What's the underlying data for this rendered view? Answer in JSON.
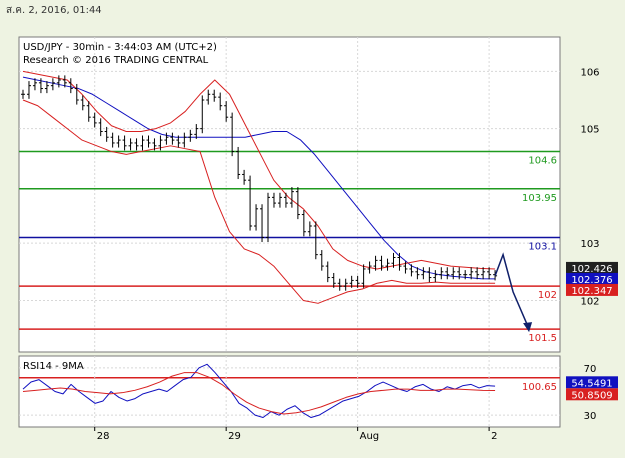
{
  "window": {
    "timestamp": "ส.ค. 2, 2016, 01:44"
  },
  "chart_data": [
    {
      "type": "line",
      "title": "USD/JPY - 30min - 3:44:03 AM (UTC+2)",
      "subtitle": "Research © 2016 TRADING CENTRAL",
      "ylim": [
        101.1,
        106.6
      ],
      "y_ticks": [
        {
          "value": 106,
          "label": "106"
        },
        {
          "value": 105,
          "label": "105"
        },
        {
          "value": 103,
          "label": "103"
        },
        {
          "value": 102,
          "label": "102"
        }
      ],
      "x_ticks": [
        {
          "at": 12,
          "label": "28"
        },
        {
          "at": 34,
          "label": "29"
        },
        {
          "at": 56,
          "label": "Aug"
        },
        {
          "at": 78,
          "label": "2"
        }
      ],
      "levels": [
        {
          "value": 104.6,
          "label": "104.6",
          "color": "#1f9a1f"
        },
        {
          "value": 103.95,
          "label": "103.95",
          "color": "#1f9a1f"
        },
        {
          "value": 103.1,
          "label": "103.1",
          "color": "#1010a0"
        },
        {
          "value": 102.25,
          "label": "102",
          "color": "#d82020"
        },
        {
          "value": 101.5,
          "label": "101.5",
          "color": "#d82020"
        },
        {
          "value": 100.65,
          "label": "100.65",
          "color": "#d82020"
        }
      ],
      "price_labels": [
        {
          "value": 102.426,
          "label": "102.426",
          "bg": "#202020",
          "fg": "#ffffff"
        },
        {
          "value": 102.376,
          "label": "102.376",
          "bg": "#1010c0",
          "fg": "#ffffff"
        },
        {
          "value": 102.347,
          "label": "102.347",
          "bg": "#d82020",
          "fg": "#ffffff"
        }
      ],
      "series": [
        {
          "kind": "close",
          "values": [
            105.6,
            105.75,
            105.8,
            105.7,
            105.75,
            105.8,
            105.85,
            105.8,
            105.7,
            105.5,
            105.4,
            105.2,
            105.1,
            104.95,
            104.85,
            104.75,
            104.8,
            104.7,
            104.75,
            104.7,
            104.8,
            104.75,
            104.7,
            104.8,
            104.85,
            104.8,
            104.75,
            104.85,
            104.9,
            105.0,
            105.5,
            105.6,
            105.55,
            105.4,
            105.2,
            104.6,
            104.2,
            104.1,
            103.3,
            103.6,
            103.1,
            103.8,
            103.7,
            103.8,
            103.7,
            103.9,
            103.5,
            103.2,
            103.3,
            102.8,
            102.6,
            102.4,
            102.3,
            102.25,
            102.3,
            102.35,
            102.3,
            102.55,
            102.6,
            102.7,
            102.6,
            102.65,
            102.75,
            102.6,
            102.55,
            102.5,
            102.45,
            102.5,
            102.4,
            102.45,
            102.5,
            102.45,
            102.5,
            102.45,
            102.45,
            102.5,
            102.45,
            102.5,
            102.45,
            102.43
          ]
        },
        {
          "kind": "moving-average",
          "color": "#1010c0",
          "values": [
            105.9,
            105.85,
            105.8,
            105.75,
            105.7,
            105.6,
            105.45,
            105.3,
            105.15,
            105.0,
            104.9,
            104.85,
            104.85,
            104.85,
            104.85,
            104.85,
            104.85,
            104.9,
            104.95,
            104.95,
            104.8,
            104.55,
            104.25,
            103.95,
            103.65,
            103.35,
            103.05,
            102.8,
            102.6,
            102.5,
            102.45,
            102.42,
            102.4,
            102.38,
            102.376
          ]
        },
        {
          "kind": "bollinger-upper",
          "color": "#d82020",
          "values": [
            106.0,
            105.95,
            105.9,
            105.85,
            105.6,
            105.3,
            105.05,
            104.95,
            104.95,
            105.0,
            105.1,
            105.3,
            105.6,
            105.85,
            105.6,
            105.1,
            104.6,
            104.1,
            103.8,
            103.6,
            103.3,
            102.9,
            102.7,
            102.6,
            102.55,
            102.6,
            102.65,
            102.7,
            102.65,
            102.6,
            102.58,
            102.56,
            102.55
          ]
        },
        {
          "kind": "bollinger-lower",
          "color": "#d82020",
          "values": [
            105.5,
            105.4,
            105.2,
            105.0,
            104.8,
            104.7,
            104.6,
            104.55,
            104.6,
            104.65,
            104.7,
            104.65,
            104.6,
            103.8,
            103.2,
            102.9,
            102.8,
            102.6,
            102.3,
            102.0,
            101.95,
            102.05,
            102.15,
            102.2,
            102.3,
            102.35,
            102.3,
            102.3,
            102.32,
            102.3,
            102.3,
            102.3,
            102.3
          ]
        },
        {
          "kind": "projection",
          "color": "#10206a",
          "values": [
            102.43,
            102.8,
            102.15,
            101.5
          ]
        }
      ]
    },
    {
      "type": "line",
      "title": "RSI14 - 9MA",
      "ylim": [
        20,
        80
      ],
      "y_ticks": [
        {
          "value": 70,
          "label": "70"
        },
        {
          "value": 30,
          "label": "30"
        }
      ],
      "price_labels": [
        {
          "value": 54.5491,
          "label": "54.5491",
          "bg": "#1010c0",
          "fg": "#ffffff"
        },
        {
          "value": 50.8509,
          "label": "50.8509",
          "bg": "#d82020",
          "fg": "#ffffff"
        }
      ],
      "series": [
        {
          "kind": "rsi",
          "color": "#1010c0",
          "values": [
            52,
            58,
            60,
            55,
            50,
            48,
            56,
            50,
            45,
            40,
            42,
            50,
            45,
            42,
            44,
            48,
            50,
            52,
            50,
            55,
            60,
            62,
            70,
            73,
            66,
            58,
            50,
            40,
            36,
            30,
            28,
            33,
            30,
            35,
            38,
            32,
            28,
            30,
            34,
            38,
            42,
            44,
            46,
            50,
            55,
            58,
            55,
            52,
            50,
            54,
            56,
            52,
            50,
            54,
            52,
            55,
            56,
            53,
            55,
            54.55
          ]
        },
        {
          "kind": "ma",
          "color": "#d82020",
          "values": [
            50,
            51,
            52,
            53,
            52,
            50,
            49,
            48,
            49,
            51,
            54,
            58,
            63,
            66,
            66,
            62,
            56,
            48,
            41,
            36,
            33,
            31,
            32,
            34,
            37,
            41,
            45,
            48,
            50,
            51,
            52,
            52,
            51,
            51,
            52,
            52,
            51.5,
            51,
            50.85
          ]
        }
      ]
    }
  ]
}
